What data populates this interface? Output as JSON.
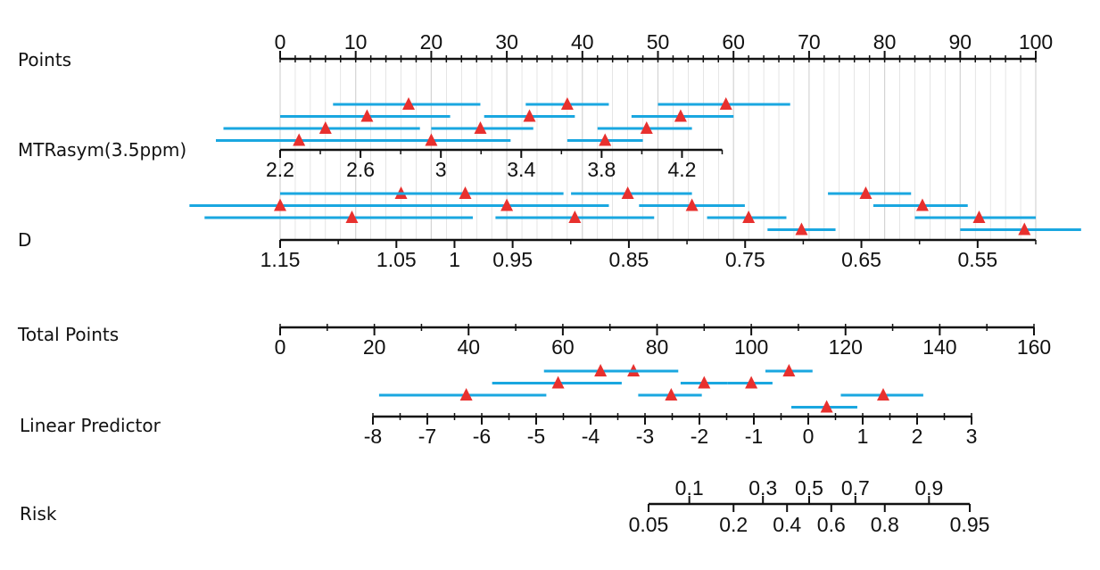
{
  "chart_data": {
    "type": "nomogram",
    "colors": {
      "axis": "#111111",
      "grid": "#d4d4d4",
      "interval": "#1aa7e0",
      "marker": "#e8302e"
    },
    "rows": [
      {
        "key": "points",
        "label": "Points",
        "axis": {
          "min": 0,
          "max": 100,
          "ticks": [
            0,
            10,
            20,
            30,
            40,
            50,
            60,
            70,
            80,
            90,
            100
          ],
          "labels": [
            "0",
            "10",
            "20",
            "30",
            "40",
            "50",
            "60",
            "70",
            "80",
            "90",
            "100"
          ],
          "minor_step": 2,
          "label_side": "above"
        },
        "grid_lines": true
      },
      {
        "key": "mtrasym",
        "label": "MTRasym(3.5ppm)",
        "axis": {
          "min": 2.2,
          "max": 4.4,
          "ticks": [
            2.2,
            2.6,
            3.0,
            3.4,
            3.8,
            4.2
          ],
          "labels": [
            "2.2",
            "2.6",
            "3",
            "3.4",
            "3.8",
            "4.2"
          ],
          "minor_ticks": [
            2.4,
            2.8,
            3.2,
            3.6,
            4.0,
            4.4
          ],
          "label_side": "below"
        },
        "intervals_in_points": [
          {
            "estimate": 17,
            "low": 7,
            "high": 26.5
          },
          {
            "estimate": 38,
            "low": 32.5,
            "high": 43.5
          },
          {
            "estimate": 59,
            "low": 50,
            "high": 67.5
          },
          {
            "estimate": 11.5,
            "low": 0,
            "high": 22.5
          },
          {
            "estimate": 33,
            "low": 27,
            "high": 39
          },
          {
            "estimate": 53,
            "low": 46.5,
            "high": 60
          },
          {
            "estimate": 6,
            "low": -7.5,
            "high": 18.5
          },
          {
            "estimate": 26.5,
            "low": 20,
            "high": 33.5
          },
          {
            "estimate": 48.5,
            "low": 42,
            "high": 54.5
          },
          {
            "estimate": 2.5,
            "low": -8.5,
            "high": 30.5
          },
          {
            "estimate": 20,
            "low": 12,
            "high": 25.5
          },
          {
            "estimate": 43,
            "low": 38,
            "high": 48
          }
        ]
      },
      {
        "key": "d",
        "label": "D",
        "axis": {
          "min": 0.5,
          "max": 1.15,
          "ticks": [
            1.15,
            1.05,
            1.0,
            0.95,
            0.85,
            0.75,
            0.65,
            0.55
          ],
          "labels": [
            "1.15",
            "1.05",
            "1",
            "0.95",
            "0.85",
            "0.75",
            "0.65",
            "0.55"
          ],
          "minor_ticks": [
            1.1,
            0.9,
            0.8,
            0.7,
            0.6,
            0.5
          ],
          "label_side": "below"
        },
        "intervals_in_points": [
          {
            "estimate": 16,
            "low": 0,
            "high": 31.5
          },
          {
            "estimate": 46,
            "low": 38.5,
            "high": 54.5
          },
          {
            "estimate": 77.5,
            "low": 72.5,
            "high": 83.5
          },
          {
            "estimate": 24.5,
            "low": 9.5,
            "high": 37.5
          },
          {
            "estimate": 54.5,
            "low": 47.5,
            "high": 61.5
          },
          {
            "estimate": 85,
            "low": 78.5,
            "high": 91
          },
          {
            "estimate": 0,
            "low": -12,
            "high": 43.5
          },
          {
            "estimate": 30,
            "low": 12,
            "high": 43.5
          },
          {
            "estimate": 62,
            "low": 56.5,
            "high": 67
          },
          {
            "estimate": 92.5,
            "low": 84,
            "high": 100
          },
          {
            "estimate": 9.5,
            "low": -10,
            "high": 25.5
          },
          {
            "estimate": 39,
            "low": 28.5,
            "high": 49.5
          },
          {
            "estimate": 69,
            "low": 64.5,
            "high": 73.5
          },
          {
            "estimate": 98.5,
            "low": 90,
            "high": 106
          }
        ]
      },
      {
        "key": "total",
        "label": "Total Points",
        "axis": {
          "min": 0,
          "max": 160,
          "ticks": [
            0,
            20,
            40,
            60,
            80,
            100,
            120,
            140,
            160
          ],
          "labels": [
            "0",
            "20",
            "40",
            "60",
            "80",
            "100",
            "120",
            "140",
            "160"
          ],
          "minor_step": 10,
          "label_side": "below"
        }
      },
      {
        "key": "lp",
        "label": "Linear Predictor",
        "axis": {
          "min": -8,
          "max": 3,
          "ticks": [
            -8,
            -7,
            -6,
            -5,
            -4,
            -3,
            -2,
            -1,
            0,
            1,
            2,
            3
          ],
          "labels": [
            "-8",
            "-7",
            "-6",
            "-5",
            "-4",
            "-3",
            "-2",
            "-1",
            "0",
            "1",
            "2",
            "3"
          ],
          "minor_step": 0.5,
          "label_side": "below"
        },
        "intervals_in_total_points": [
          {
            "estimate": 75,
            "low": 65,
            "high": 84.5
          },
          {
            "estimate": 108,
            "low": 103,
            "high": 113
          },
          {
            "estimate": 68,
            "low": 56,
            "high": 79
          },
          {
            "estimate": 100,
            "low": 95,
            "high": 104.5
          },
          {
            "estimate": 59,
            "low": 45,
            "high": 72.5
          },
          {
            "estimate": 90,
            "low": 85,
            "high": 95
          },
          {
            "estimate": 128,
            "low": 119,
            "high": 136.5
          },
          {
            "estimate": 39.5,
            "low": 21,
            "high": 56.5
          },
          {
            "estimate": 83,
            "low": 76,
            "high": 89.5
          },
          {
            "estimate": 116,
            "low": 108.5,
            "high": 122.5
          }
        ]
      },
      {
        "key": "risk",
        "label": "Risk",
        "axis": {
          "min_lp": -2.944,
          "max_lp": 2.944,
          "ticks_above": [
            0.1,
            0.3,
            0.5,
            0.7,
            0.9
          ],
          "labels_above": [
            "0.1",
            "0.3",
            "0.5",
            "0.7",
            "0.9"
          ],
          "ticks_below": [
            0.05,
            0.2,
            0.4,
            0.6,
            0.8,
            0.95
          ],
          "labels_below": [
            "0.05",
            "0.2",
            "0.4",
            "0.6",
            "0.8",
            "0.95"
          ],
          "scale": "logit"
        }
      }
    ]
  }
}
